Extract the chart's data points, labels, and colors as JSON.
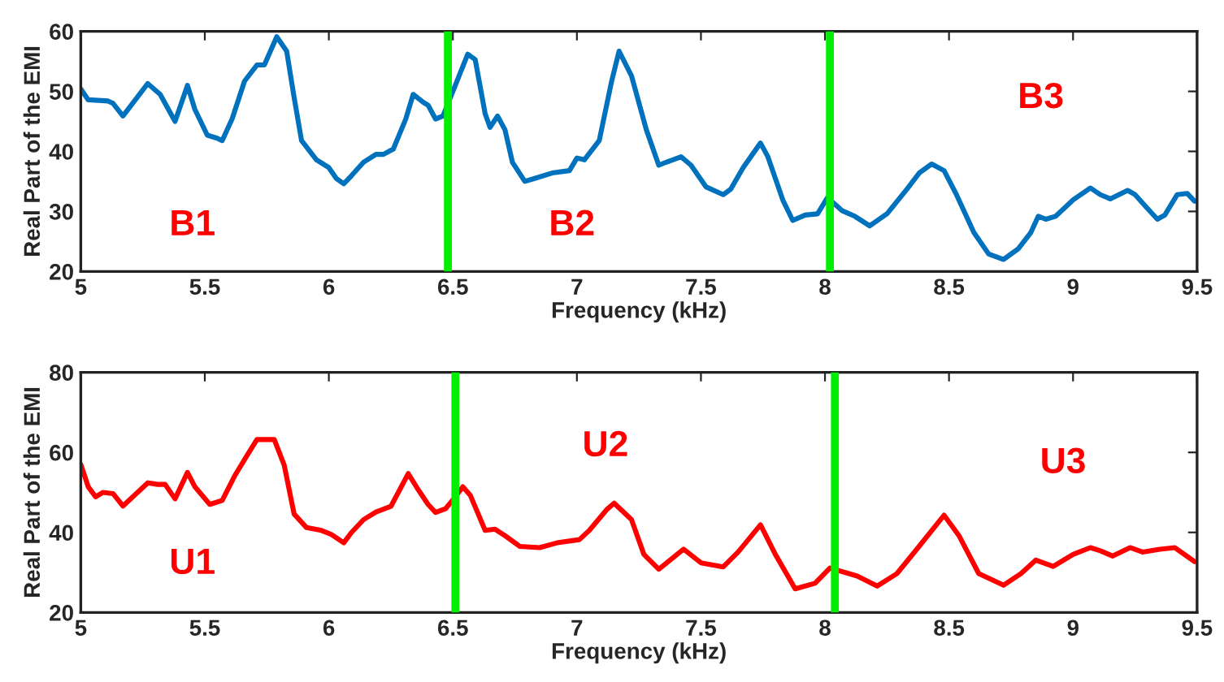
{
  "chart_data": [
    {
      "type": "line",
      "xlabel": "Frequency (kHz)",
      "ylabel": "Real Part of the EMI",
      "xlim": [
        5,
        9.5
      ],
      "xticks": [
        5,
        5.5,
        6,
        6.5,
        7,
        7.5,
        8,
        8.5,
        9,
        9.5
      ],
      "ylim": [
        20,
        60
      ],
      "yticks": [
        20,
        30,
        40,
        50,
        60
      ],
      "grid": false,
      "legend": false,
      "series": [
        {
          "color": "#0072bd",
          "x": [
            5.0,
            5.03,
            5.11,
            5.13,
            5.17,
            5.27,
            5.32,
            5.38,
            5.43,
            5.46,
            5.51,
            5.55,
            5.57,
            5.61,
            5.66,
            5.71,
            5.74,
            5.79,
            5.83,
            5.86,
            5.89,
            5.95,
            6.0,
            6.03,
            6.06,
            6.09,
            6.14,
            6.19,
            6.22,
            6.26,
            6.31,
            6.34,
            6.38,
            6.4,
            6.43,
            6.46,
            6.5,
            6.56,
            6.59,
            6.63,
            6.65,
            6.68,
            6.71,
            6.74,
            6.79,
            6.83,
            6.9,
            6.97,
            7.0,
            7.03,
            7.09,
            7.14,
            7.17,
            7.22,
            7.28,
            7.33,
            7.36,
            7.42,
            7.46,
            7.52,
            7.59,
            7.62,
            7.67,
            7.74,
            7.77,
            7.83,
            7.87,
            7.92,
            7.97,
            8.01,
            8.07,
            8.12,
            8.18,
            8.25,
            8.33,
            8.38,
            8.43,
            8.48,
            8.53,
            8.6,
            8.66,
            8.72,
            8.78,
            8.83,
            8.86,
            8.89,
            8.93,
            9.0,
            9.07,
            9.11,
            9.15,
            9.22,
            9.25,
            9.3,
            9.34,
            9.37,
            9.42,
            9.46,
            9.49
          ],
          "values": [
            50.4,
            48.6,
            48.4,
            48,
            45.9,
            51.3,
            49.5,
            45,
            51,
            47,
            42.7,
            42.2,
            41.8,
            45.4,
            51.7,
            54.4,
            54.4,
            59.1,
            56.7,
            49,
            41.8,
            38.6,
            37.3,
            35.5,
            34.6,
            35.9,
            38.2,
            39.5,
            39.5,
            40.4,
            45.4,
            49.5,
            48.2,
            47.7,
            45.4,
            45.9,
            50,
            56.2,
            55.3,
            46.3,
            44,
            45.9,
            43.6,
            38.2,
            35,
            35.5,
            36.4,
            36.8,
            38.9,
            38.6,
            41.8,
            51.7,
            56.7,
            52.6,
            43.6,
            37.7,
            38.2,
            39.1,
            37.7,
            34.1,
            32.8,
            33.7,
            37.3,
            41.4,
            39.1,
            31.9,
            28.5,
            29.4,
            29.6,
            32.3,
            30.1,
            29.2,
            27.6,
            29.6,
            33.7,
            36.4,
            37.9,
            36.8,
            32.8,
            26.5,
            22.9,
            22,
            23.8,
            26.5,
            29.2,
            28.7,
            29.2,
            31.9,
            33.9,
            32.8,
            32.1,
            33.5,
            32.8,
            30.5,
            28.7,
            29.4,
            32.8,
            33,
            31.7
          ]
        }
      ],
      "ref_lines": [
        {
          "axis": "x",
          "value": 6.48,
          "color": "#00ee00"
        },
        {
          "axis": "x",
          "value": 8.02,
          "color": "#00ee00"
        }
      ],
      "annotations": [
        "B1",
        "B2",
        "B3"
      ]
    },
    {
      "type": "line",
      "xlabel": "Frequency (kHz)",
      "ylabel": "Real Part of the EMI",
      "xlim": [
        5,
        9.5
      ],
      "xticks": [
        5,
        5.5,
        6,
        6.5,
        7,
        7.5,
        8,
        8.5,
        9,
        9.5
      ],
      "ylim": [
        20,
        80
      ],
      "yticks": [
        20,
        40,
        60,
        80
      ],
      "grid": false,
      "legend": false,
      "series": [
        {
          "color": "#ff0000",
          "x": [
            5.0,
            5.03,
            5.06,
            5.09,
            5.13,
            5.17,
            5.27,
            5.31,
            5.34,
            5.38,
            5.43,
            5.46,
            5.52,
            5.57,
            5.62,
            5.67,
            5.71,
            5.78,
            5.82,
            5.86,
            5.91,
            5.97,
            6.01,
            6.06,
            6.09,
            6.14,
            6.19,
            6.25,
            6.28,
            6.32,
            6.36,
            6.4,
            6.43,
            6.47,
            6.51,
            6.54,
            6.57,
            6.63,
            6.67,
            6.71,
            6.77,
            6.85,
            6.92,
            7.01,
            7.05,
            7.12,
            7.15,
            7.22,
            7.27,
            7.33,
            7.43,
            7.5,
            7.59,
            7.65,
            7.74,
            7.8,
            7.88,
            7.96,
            8.02,
            8.13,
            8.21,
            8.29,
            8.37,
            8.48,
            8.54,
            8.62,
            8.72,
            8.79,
            8.85,
            8.92,
            9.0,
            9.07,
            9.11,
            9.16,
            9.23,
            9.28,
            9.35,
            9.41,
            9.49
          ],
          "values": [
            57,
            51.4,
            48.9,
            50,
            49.7,
            46.6,
            52.4,
            52,
            52,
            48.4,
            55,
            51.4,
            47,
            48,
            54.1,
            59.2,
            63.2,
            63.2,
            56.8,
            44.6,
            41.2,
            40.5,
            39.5,
            37.4,
            39.9,
            43.2,
            45.1,
            46.5,
            50,
            54.7,
            50.7,
            47,
            45,
            45.9,
            48.9,
            51.4,
            49.3,
            40.5,
            40.8,
            39.2,
            36.5,
            36.2,
            37.4,
            38.2,
            40.5,
            45.7,
            47.3,
            43.2,
            34.5,
            30.8,
            35.8,
            32.4,
            31.4,
            35.1,
            41.9,
            34.5,
            25.9,
            27.3,
            31.1,
            29.1,
            26.6,
            29.7,
            35.8,
            44.3,
            39.2,
            29.7,
            26.8,
            29.7,
            33.1,
            31.5,
            34.5,
            36.2,
            35.4,
            34.1,
            36.2,
            35.1,
            35.8,
            36.2,
            32.7
          ]
        }
      ],
      "ref_lines": [
        {
          "axis": "x",
          "value": 6.51,
          "color": "#00ee00"
        },
        {
          "axis": "x",
          "value": 8.04,
          "color": "#00ee00"
        }
      ],
      "annotations": [
        "U1",
        "U2",
        "U3"
      ]
    }
  ]
}
